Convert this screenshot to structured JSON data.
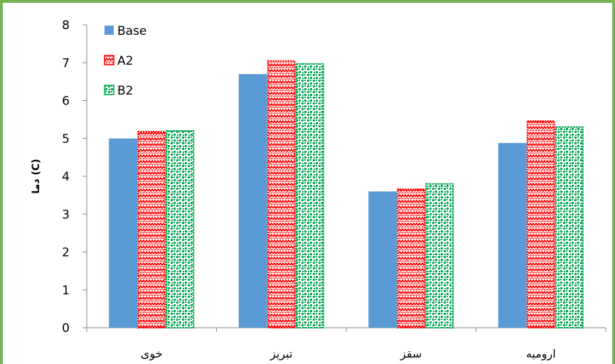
{
  "chart_data": {
    "type": "bar",
    "title": "",
    "xlabel": "",
    "ylabel": "دما (C)",
    "ylim": [
      0,
      8
    ],
    "yticks": [
      0,
      1,
      2,
      3,
      4,
      5,
      6,
      7,
      8
    ],
    "grid": false,
    "legend_position": "top-left",
    "categories": [
      "خوی",
      "تبریز",
      "سقز",
      "ارومیه"
    ],
    "series": [
      {
        "name": "Base",
        "values": [
          5.0,
          6.7,
          3.6,
          4.88
        ],
        "color": "#5b9bd5",
        "pattern": "solid"
      },
      {
        "name": "A2",
        "values": [
          5.18,
          7.05,
          3.66,
          5.46
        ],
        "color": "#ff0000",
        "pattern": "zigzag"
      },
      {
        "name": "B2",
        "values": [
          5.2,
          6.97,
          3.8,
          5.3
        ],
        "color": "#00a651",
        "pattern": "checker"
      }
    ]
  },
  "colors": {
    "frame_border": "#77b255",
    "axis": "#868686"
  }
}
